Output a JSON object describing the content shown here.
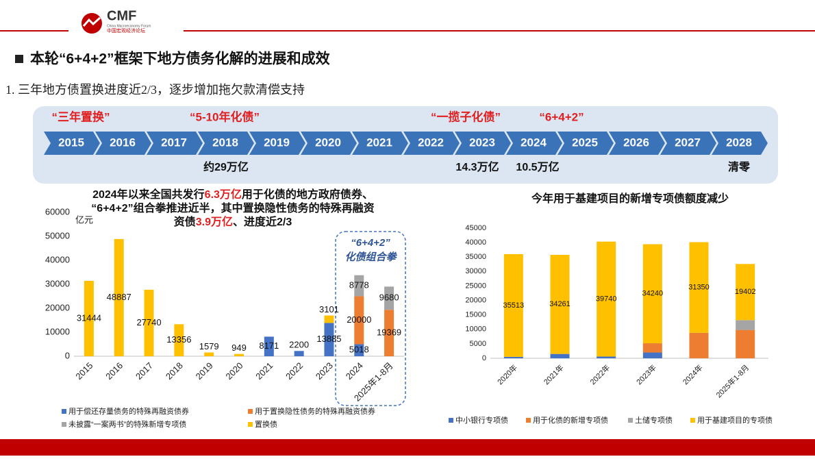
{
  "header": {
    "logo": "CMF",
    "logo_en": "China Macroeconomy Forum",
    "logo_cn": "中国宏观经济论坛",
    "section_title": "本轮“6+4+2”框架下地方债务化解的进展和成效",
    "subtitle": "1. 三年地方债置换进度近2/3，逐步增加拖欠款清偿支持"
  },
  "timeline": {
    "years": [
      "2015",
      "2016",
      "2017",
      "2018",
      "2019",
      "2020",
      "2021",
      "2022",
      "2023",
      "2024",
      "2025",
      "2026",
      "2027",
      "2028"
    ],
    "top_labels": [
      "“三年置换”",
      "“5-10年化债”",
      "“一揽子化债”",
      "“6+4+2”"
    ],
    "bottom_labels": [
      "约29万亿",
      "14.3万亿",
      "10.5万亿",
      "清零"
    ]
  },
  "chart_data": [
    {
      "type": "bar",
      "stacked": true,
      "title": [
        [
          "2024年以来全国共发行",
          "6.3万亿",
          "用于化债的地方政府债券、"
        ],
        [
          "“6+4+2”组合拳推进近半，其中置换隐性债务的特殊再融资"
        ],
        [
          "资债",
          "3.9万亿",
          "、进度近2/3"
        ]
      ],
      "ylabel": "亿元",
      "annotation": [
        "“6+4+2”",
        "化债组合拳"
      ],
      "categories": [
        "2015",
        "2016",
        "2017",
        "2018",
        "2019",
        "2020",
        "2021",
        "2022",
        "2023",
        "2024",
        "2025年1-8月"
      ],
      "series": [
        {
          "name": "用于偿还存量债务的特殊再融资债券",
          "color": "#4472c4",
          "show_labels": true,
          "values": [
            null,
            null,
            null,
            null,
            null,
            null,
            8171,
            2200,
            13885,
            5018,
            null
          ]
        },
        {
          "name": "用于置换隐性债务的特殊再融资债券",
          "color": "#ed7d31",
          "show_labels": true,
          "values": [
            null,
            null,
            null,
            null,
            null,
            null,
            null,
            null,
            null,
            20000,
            19369
          ]
        },
        {
          "name": "未披露“一案两书”的特殊新增专项债",
          "color": "#a5a5a5",
          "show_labels": true,
          "values": [
            null,
            null,
            null,
            null,
            null,
            null,
            null,
            null,
            null,
            8778,
            9680
          ]
        },
        {
          "name": "置换债",
          "color": "#ffc000",
          "show_labels": true,
          "values": [
            31444,
            48887,
            27740,
            13356,
            1579,
            949,
            null,
            null,
            3101,
            null,
            null
          ]
        }
      ],
      "ylim": [
        0,
        60000
      ],
      "yticks": [
        0,
        10000,
        20000,
        30000,
        40000,
        50000,
        60000
      ],
      "grid": false
    },
    {
      "type": "bar",
      "stacked": true,
      "title": "今年用于基建项目的新增专项债额度减少",
      "categories": [
        "2020年",
        "2021年",
        "2022年",
        "2023年",
        "2024年",
        "2025年1-8月"
      ],
      "series": [
        {
          "name": "中小银行专项债",
          "color": "#4472c4",
          "show_labels": false,
          "values": [
            500,
            1500,
            600,
            2000,
            null,
            null
          ]
        },
        {
          "name": "用于化债的新增专项债",
          "color": "#ed7d31",
          "show_labels": false,
          "values": [
            null,
            null,
            null,
            3200,
            8800,
            9800
          ]
        },
        {
          "name": "土储专项债",
          "color": "#a5a5a5",
          "show_labels": false,
          "values": [
            null,
            null,
            null,
            null,
            null,
            3400
          ]
        },
        {
          "name": "用于基建项目的专项债",
          "color": "#ffc000",
          "show_labels": true,
          "values": [
            35513,
            34261,
            39740,
            34240,
            31350,
            19402
          ]
        }
      ],
      "ylim": [
        0,
        45000
      ],
      "yticks": [
        0,
        5000,
        10000,
        15000,
        20000,
        25000,
        30000,
        35000,
        40000,
        45000
      ],
      "grid": false
    }
  ]
}
